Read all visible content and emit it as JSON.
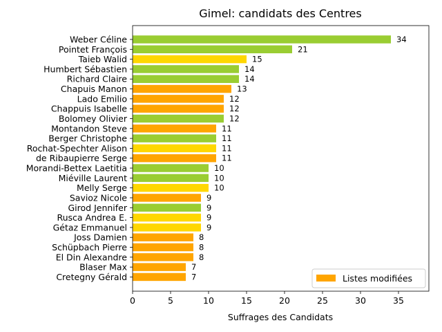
{
  "chart_data": {
    "type": "bar",
    "orientation": "horizontal",
    "title": "Gimel: candidats des Centres",
    "xlabel": "Suffrages des Candidats",
    "ylabel": "",
    "xlim": [
      0,
      39
    ],
    "xticks": [
      0,
      5,
      10,
      15,
      20,
      25,
      30,
      35
    ],
    "grid": false,
    "legend": {
      "placement": "bottom-right",
      "entries": [
        {
          "label": "Listes modifiées",
          "color": "#ffa500"
        }
      ]
    },
    "colors": {
      "green": "#9acd32",
      "yellow": "#ffd700",
      "orange": "#ffa500"
    },
    "bars": [
      {
        "label": "Weber Céline",
        "value": 34,
        "color": "#9acd32"
      },
      {
        "label": "Pointet François",
        "value": 21,
        "color": "#9acd32"
      },
      {
        "label": "Taieb Walid",
        "value": 15,
        "color": "#ffd700"
      },
      {
        "label": "Humbert Sébastien",
        "value": 14,
        "color": "#9acd32"
      },
      {
        "label": "Richard Claire",
        "value": 14,
        "color": "#9acd32"
      },
      {
        "label": "Chapuis Manon",
        "value": 13,
        "color": "#ffa500"
      },
      {
        "label": "Lado Emilio",
        "value": 12,
        "color": "#ffa500"
      },
      {
        "label": "Chappuis Isabelle",
        "value": 12,
        "color": "#ffa500"
      },
      {
        "label": "Bolomey Olivier",
        "value": 12,
        "color": "#9acd32"
      },
      {
        "label": "Montandon Steve",
        "value": 11,
        "color": "#ffa500"
      },
      {
        "label": "Berger Christophe",
        "value": 11,
        "color": "#9acd32"
      },
      {
        "label": "Rochat-Spechter Alison",
        "value": 11,
        "color": "#ffd700"
      },
      {
        "label": "de Ribaupierre Serge",
        "value": 11,
        "color": "#ffa500"
      },
      {
        "label": "Morandi-Bettex Laetitia",
        "value": 10,
        "color": "#9acd32"
      },
      {
        "label": "Miéville Laurent",
        "value": 10,
        "color": "#9acd32"
      },
      {
        "label": "Melly Serge",
        "value": 10,
        "color": "#ffd700"
      },
      {
        "label": "Savioz Nicole",
        "value": 9,
        "color": "#ffa500"
      },
      {
        "label": "Girod Jennifer",
        "value": 9,
        "color": "#9acd32"
      },
      {
        "label": "Rusca Andrea E.",
        "value": 9,
        "color": "#ffd700"
      },
      {
        "label": "Gétaz Emmanuel",
        "value": 9,
        "color": "#ffd700"
      },
      {
        "label": "Joss Damien",
        "value": 8,
        "color": "#ffa500"
      },
      {
        "label": "Schüpbach Pierre",
        "value": 8,
        "color": "#ffa500"
      },
      {
        "label": "El Din Alexandre",
        "value": 8,
        "color": "#ffa500"
      },
      {
        "label": "Blaser Max",
        "value": 7,
        "color": "#ffa500"
      },
      {
        "label": "Cretegny Gérald",
        "value": 7,
        "color": "#ffa500"
      }
    ]
  }
}
